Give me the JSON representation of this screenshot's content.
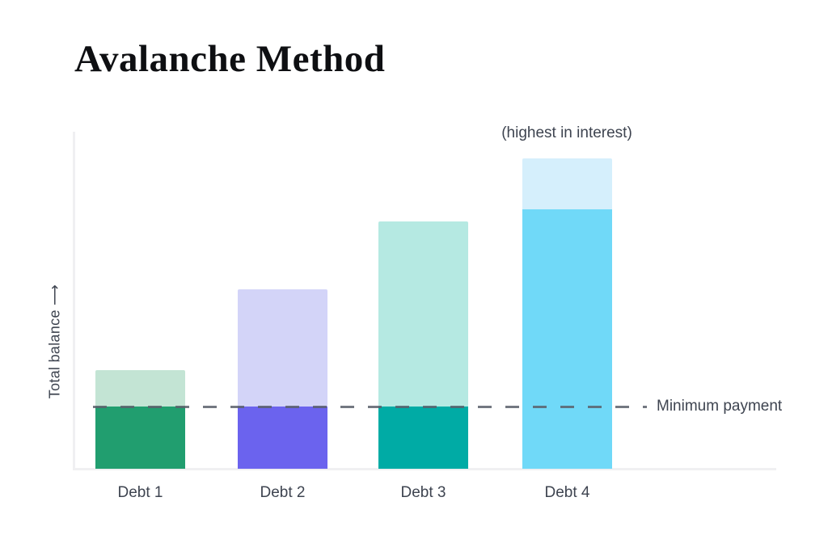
{
  "title": "Avalanche Method",
  "chart_data": {
    "type": "bar",
    "stacked": true,
    "title": "Avalanche Method",
    "xlabel": "",
    "ylabel": "Total balance  ⟶",
    "categories": [
      "Debt 1",
      "Debt 2",
      "Debt 3",
      "Debt 4"
    ],
    "units": "relative balance (0-100 of y-axis height, no numeric ticks shown)",
    "series": [
      {
        "name": "lower segment (paid / at-or-below minimum payment band)",
        "values": [
          18.5,
          18.5,
          18.5,
          77.0
        ]
      },
      {
        "name": "upper segment (remaining balance)",
        "values": [
          10.8,
          34.7,
          54.9,
          15.1
        ]
      }
    ],
    "totals": [
      29.3,
      53.2,
      73.4,
      92.1
    ],
    "bar_colors_lower": [
      "#219E6F",
      "#6B63EE",
      "#00ABA5",
      "#70D9F8"
    ],
    "bar_colors_upper": [
      "#C3E4D4",
      "#D3D4F8",
      "#B5E9E2",
      "#D5EFFC"
    ],
    "reference_line": {
      "label": "Minimum payment",
      "value": 18.5,
      "style": "dashed",
      "color": "#5A606B"
    },
    "annotation": {
      "text": "(highest in interest)",
      "target": "Debt 4"
    },
    "axis_color": "#F0F0F2",
    "ylim": [
      0,
      100
    ],
    "grid": false,
    "legend": false
  },
  "colors": {
    "title_text": "#0E0F12",
    "label_text": "#3E4450",
    "background": "#FFFFFF"
  }
}
